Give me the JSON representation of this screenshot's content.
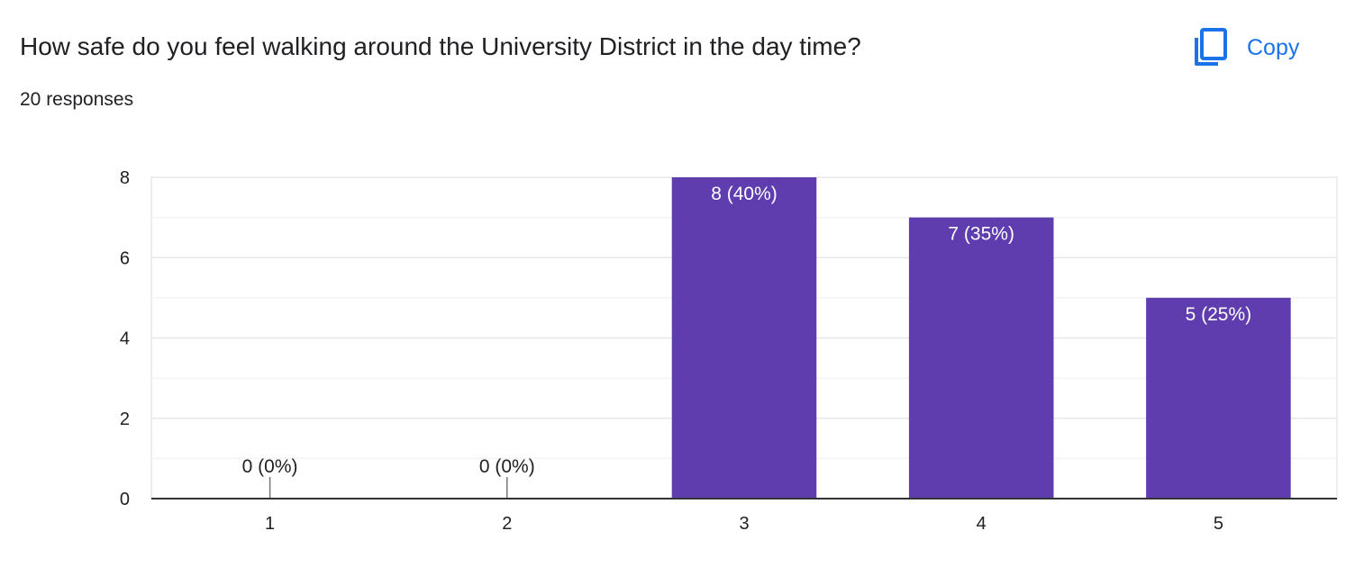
{
  "header": {
    "title": "How safe do you feel walking around the University District in the day time?",
    "response_count": "20 responses",
    "copy_label": "Copy"
  },
  "colors": {
    "bar": "#5f3dae",
    "accent": "#1a73e8",
    "grid": "#e8e8e8",
    "axis": "#333333"
  },
  "chart_data": {
    "type": "bar",
    "categories": [
      "1",
      "2",
      "3",
      "4",
      "5"
    ],
    "values": [
      0,
      0,
      8,
      7,
      5
    ],
    "data_labels": [
      "0 (0%)",
      "0 (0%)",
      "8 (40%)",
      "7 (35%)",
      "5 (25%)"
    ],
    "ylim": [
      0,
      8
    ],
    "y_ticks": [
      "0",
      "2",
      "4",
      "6",
      "8"
    ],
    "grid": true,
    "legend": "none"
  }
}
